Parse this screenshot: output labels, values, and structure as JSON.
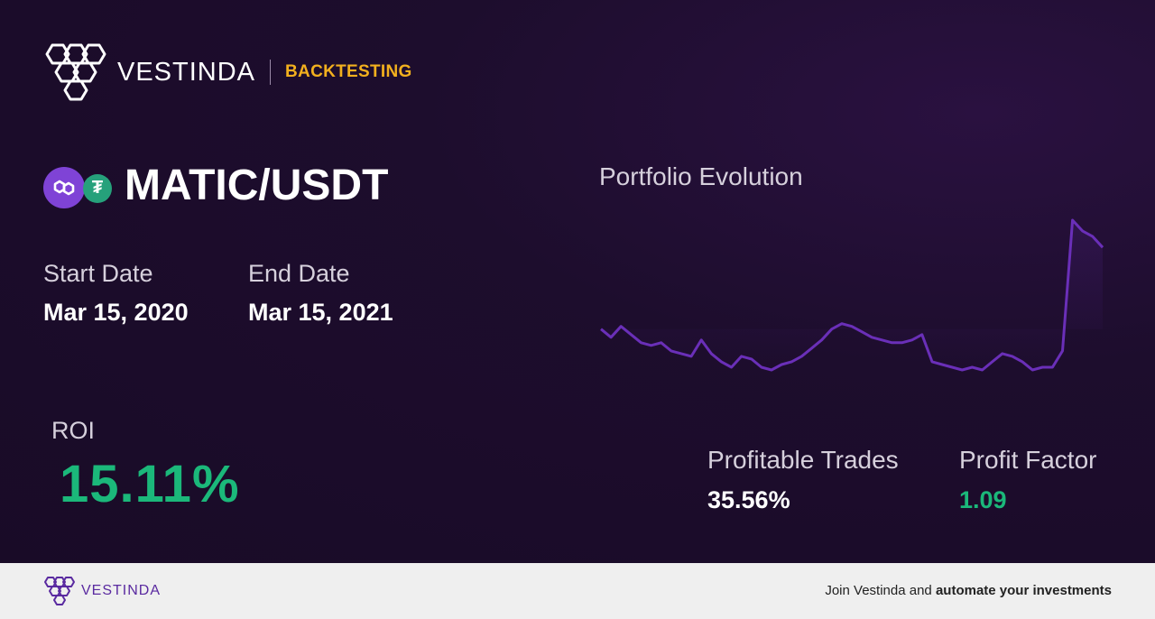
{
  "brand": {
    "name": "VESTINDA",
    "tag": "BACKTESTING"
  },
  "pair": {
    "name": "MATIC/USDT",
    "icons": [
      "matic-icon",
      "usdt-icon"
    ],
    "usdt_glyph": "₮"
  },
  "dates": {
    "start_label": "Start Date",
    "start_value": "Mar 15, 2020",
    "end_label": "End Date",
    "end_value": "Mar 15, 2021"
  },
  "roi": {
    "label": "ROI",
    "value": "15.11%"
  },
  "chart": {
    "title": "Portfolio Evolution"
  },
  "metrics": {
    "profitable_label": "Profitable Trades",
    "profitable_value": "35.56%",
    "factor_label": "Profit Factor",
    "factor_value": "1.09"
  },
  "footer": {
    "brand": "VESTINDA",
    "cta_prefix": "Join Vestinda and ",
    "cta_bold": "automate your investments"
  },
  "colors": {
    "accent_purple": "#7f43d6",
    "gold": "#f2b01e",
    "positive_green": "#1bb87a",
    "line": "#6a2fb8"
  },
  "chart_data": {
    "type": "line",
    "title": "Portfolio Evolution",
    "y_unit": "relative portfolio value",
    "start_value": 1.0,
    "end_value": 1.1511,
    "values": [
      1.0,
      0.985,
      1.005,
      0.99,
      0.975,
      0.97,
      0.975,
      0.96,
      0.955,
      0.95,
      0.98,
      0.955,
      0.94,
      0.93,
      0.95,
      0.945,
      0.93,
      0.925,
      0.935,
      0.94,
      0.95,
      0.965,
      0.98,
      1.0,
      1.01,
      1.005,
      0.995,
      0.985,
      0.98,
      0.975,
      0.975,
      0.98,
      0.99,
      0.94,
      0.935,
      0.93,
      0.925,
      0.93,
      0.925,
      0.94,
      0.955,
      0.95,
      0.94,
      0.925,
      0.93,
      0.93,
      0.96,
      1.2,
      1.18,
      1.17,
      1.15
    ]
  }
}
